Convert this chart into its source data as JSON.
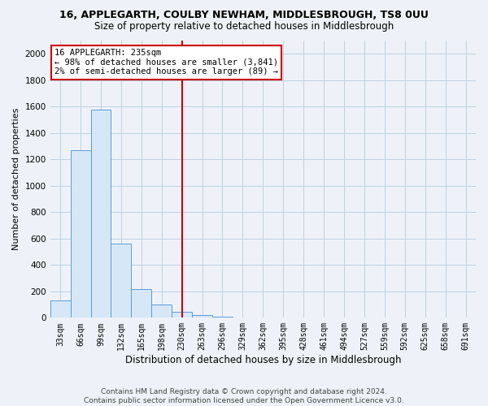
{
  "title1": "16, APPLEGARTH, COULBY NEWHAM, MIDDLESBROUGH, TS8 0UU",
  "title2": "Size of property relative to detached houses in Middlesbrough",
  "xlabel": "Distribution of detached houses by size in Middlesbrough",
  "ylabel": "Number of detached properties",
  "footer1": "Contains HM Land Registry data © Crown copyright and database right 2024.",
  "footer2": "Contains public sector information licensed under the Open Government Licence v3.0.",
  "bin_labels": [
    "33sqm",
    "66sqm",
    "99sqm",
    "132sqm",
    "165sqm",
    "198sqm",
    "230sqm",
    "263sqm",
    "296sqm",
    "329sqm",
    "362sqm",
    "395sqm",
    "428sqm",
    "461sqm",
    "494sqm",
    "527sqm",
    "559sqm",
    "592sqm",
    "625sqm",
    "658sqm",
    "691sqm"
  ],
  "bar_values": [
    130,
    1270,
    1580,
    560,
    220,
    100,
    45,
    20,
    10,
    5,
    2,
    1,
    0,
    0,
    0,
    0,
    0,
    0,
    0,
    0,
    0
  ],
  "bar_color": "#d6e8f7",
  "bar_edge_color": "#5b9bd5",
  "grid_color": "#c0cfe0",
  "vline_index": 6,
  "vline_color": "#cc0000",
  "annotation_line1": "16 APPLEGARTH: 235sqm",
  "annotation_line2": "← 98% of detached houses are smaller (3,841)",
  "annotation_line3": "2% of semi-detached houses are larger (89) →",
  "annotation_box_facecolor": "#ffffff",
  "annotation_box_edgecolor": "#cc0000",
  "ylim": [
    0,
    2100
  ],
  "yticks": [
    0,
    200,
    400,
    600,
    800,
    1000,
    1200,
    1400,
    1600,
    1800,
    2000
  ],
  "background_color": "#eef2f8",
  "title1_fontsize": 9,
  "title2_fontsize": 8.5,
  "ylabel_fontsize": 8,
  "xlabel_fontsize": 8.5,
  "tick_fontsize": 7,
  "footer_fontsize": 6.5,
  "annot_fontsize": 7.5
}
